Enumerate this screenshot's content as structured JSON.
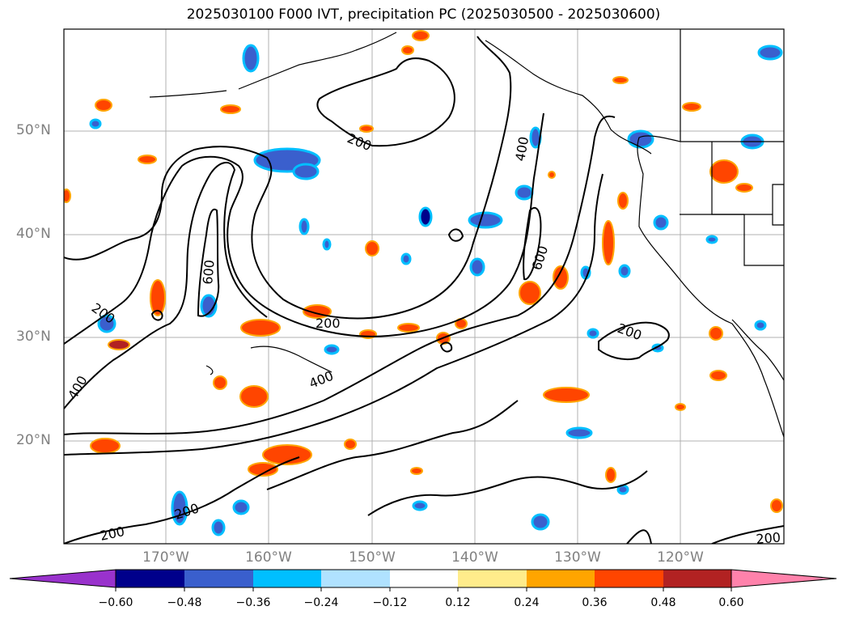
{
  "title": "2025030100 F000 IVT, precipitation PC (2025030500 - 2025030600)",
  "lat_labels": [
    "50°N",
    "40°N",
    "30°N",
    "20°N"
  ],
  "lon_labels": [
    "170°W",
    "160°W",
    "150°W",
    "140°W",
    "130°W",
    "120°W"
  ],
  "contour_labels": [
    "200",
    "400",
    "600"
  ],
  "colorbar": {
    "ticks": [
      "−0.60",
      "−0.48",
      "−0.36",
      "−0.24",
      "−0.12",
      "0.12",
      "0.24",
      "0.36",
      "0.48",
      "0.60"
    ],
    "colors": [
      "#9932cc",
      "#00008b",
      "#3a5fcd",
      "#00bfff",
      "#b0e2ff",
      "#ffffff",
      "#ffec8b",
      "#ffa500",
      "#ff4500",
      "#b22222",
      "#ff82ab"
    ]
  }
}
